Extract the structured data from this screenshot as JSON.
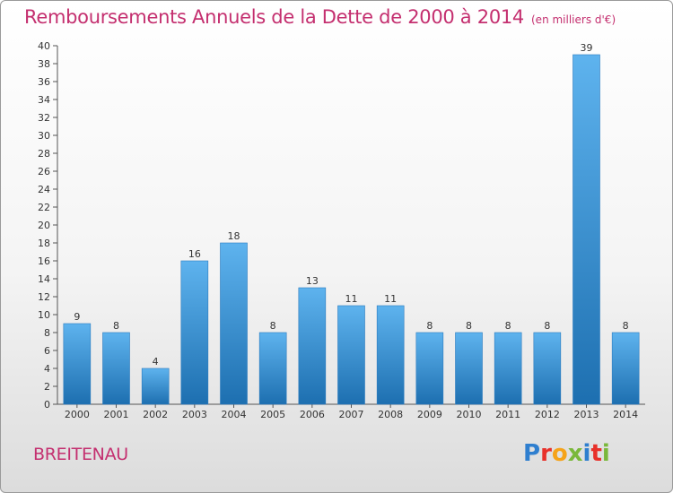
{
  "header": {
    "title": "Remboursements Annuels de la Dette de 2000 à 2014",
    "subtitle": "(en milliers d'€)"
  },
  "footer": {
    "commune": "BREITENAU",
    "logo_text": "Proxiti"
  },
  "colors": {
    "accent": "#c42f6f",
    "bar_top": "#5eb3ee",
    "bar_bottom": "#1d6fb0",
    "logo_letters": [
      "#2f7fcf",
      "#e8312a",
      "#f5a31a",
      "#7ab83b",
      "#2f7fcf",
      "#e8312a",
      "#7ab83b"
    ]
  },
  "chart_data": {
    "type": "bar",
    "title": "Remboursements Annuels de la Dette de 2000 à 2014",
    "unit": "(en milliers d'€)",
    "categories": [
      "2000",
      "2001",
      "2002",
      "2003",
      "2004",
      "2005",
      "2006",
      "2007",
      "2008",
      "2009",
      "2010",
      "2011",
      "2012",
      "2013",
      "2014"
    ],
    "values": [
      9,
      8,
      4,
      16,
      18,
      8,
      13,
      11,
      11,
      8,
      8,
      8,
      8,
      39,
      8
    ],
    "ylim": [
      0,
      40
    ],
    "yticks": [
      0,
      2,
      4,
      6,
      8,
      10,
      12,
      14,
      16,
      18,
      20,
      22,
      24,
      26,
      28,
      30,
      32,
      34,
      36,
      38,
      40
    ],
    "grid": false,
    "legend": "none"
  }
}
